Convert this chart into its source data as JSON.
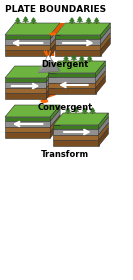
{
  "title": "PLATE BOUNDARIES",
  "labels": [
    "Divergent",
    "Convergent",
    "Transform"
  ],
  "bg_color": "#ffffff",
  "title_fontsize": 6.5,
  "label_fontsize": 6.0,
  "colors": {
    "grass_top": "#6db33f",
    "grass_side": "#4a8a28",
    "grass_front": "#3d7a20",
    "gray_top": "#a0a0a0",
    "gray_side": "#808080",
    "gray_front": "#909090",
    "brown1_top": "#b07840",
    "brown1_side": "#8a5c28",
    "brown1_front": "#9a6830",
    "brown2_top": "#8a5a28",
    "brown2_side": "#6a4018",
    "brown2_front": "#7a4e20",
    "orange": "#e05800",
    "lava": "#ff6600",
    "arrow_color": "#ffffff",
    "tree_trunk": "#6b3d1e",
    "tree_dark": "#2d6e1e",
    "tree_light": "#4a9e2e",
    "mountain_gray": "#888888",
    "mountain_light": "#aaaaaa",
    "snow": "#ffffff",
    "line_color": "#444444"
  }
}
